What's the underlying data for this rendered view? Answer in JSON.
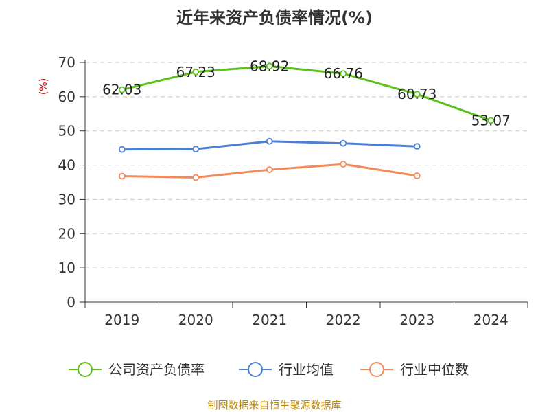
{
  "chart_data": {
    "type": "line",
    "title": "近年来资产负债率情况(%)",
    "ylabel": "(%)",
    "xlabel": "",
    "categories": [
      "2019",
      "2020",
      "2021",
      "2022",
      "2023",
      "2024"
    ],
    "ylim": [
      0,
      70
    ],
    "yticks": [
      0,
      10,
      20,
      30,
      40,
      50,
      60,
      70
    ],
    "grid": true,
    "legend_position": "bottom",
    "series": [
      {
        "name": "公司资产负债率",
        "color": "#5bc21a",
        "values": [
          62.03,
          67.23,
          68.92,
          66.76,
          60.73,
          53.07
        ],
        "labels": [
          "62.03",
          "67.23",
          "68.92",
          "66.76",
          "60.73",
          "53.07"
        ]
      },
      {
        "name": "行业均值",
        "color": "#4a7fd8",
        "values": [
          44.6,
          44.7,
          47.0,
          46.4,
          45.5,
          null
        ]
      },
      {
        "name": "行业中位数",
        "color": "#f48a5a",
        "values": [
          36.8,
          36.4,
          38.7,
          40.3,
          36.9,
          null
        ]
      }
    ]
  },
  "source_text": "制图数据来自恒生聚源数据库"
}
